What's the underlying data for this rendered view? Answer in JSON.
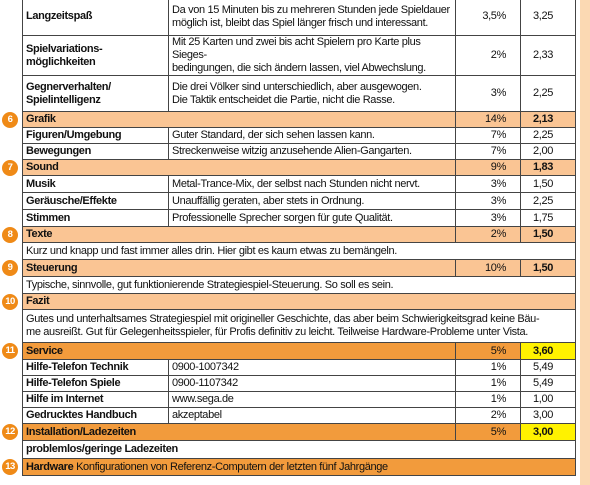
{
  "rows": [
    {
      "name": "Langzeitspaß",
      "description": "Da von 15 Minuten bis zu mehreren Stunden jede Spieldauer\nmöglich ist, bleibt das Spiel länger frisch und interessant.",
      "weight": "3,5%",
      "score": "3,25"
    },
    {
      "name": "Spielvariations-\nmöglichkeiten",
      "description": "Mit 25 Karten und zwei bis acht Spielern pro Karte plus Sieges-\nbedingungen, die sich ändern lassen, viel Abwechslung.",
      "weight": "2%",
      "score": "2,33"
    },
    {
      "name": "Gegnerverhalten/\nSpielintelligenz",
      "description": "Die drei Völker sind unterschiedlich, aber ausgewogen.\nDie Taktik entscheidet die Partie, nicht die Rasse.",
      "weight": "3%",
      "score": "2,25"
    },
    {
      "number": "6",
      "name": "Grafik",
      "weight": "14%",
      "score": "2,13"
    },
    {
      "name": "Figuren/Umgebung",
      "description": "Guter Standard, der sich sehen lassen kann.",
      "weight": "7%",
      "score": "2,25"
    },
    {
      "name": "Bewegungen",
      "description": "Streckenweise witzig anzusehende Alien-Gangarten.",
      "weight": "7%",
      "score": "2,00"
    },
    {
      "number": "7",
      "name": "Sound",
      "weight": "9%",
      "score": "1,83"
    },
    {
      "name": "Musik",
      "description": "Metal-Trance-Mix, der selbst nach Stunden nicht nervt.",
      "weight": "3%",
      "score": "1,50"
    },
    {
      "name": "Geräusche/Effekte",
      "description": "Unauffällig geraten, aber stets in Ordnung.",
      "weight": "3%",
      "score": "2,25"
    },
    {
      "name": "Stimmen",
      "description": "Professionelle Sprecher sorgen für gute Qualität.",
      "weight": "3%",
      "score": "1,75"
    },
    {
      "number": "8",
      "name": "Texte",
      "weight": "2%",
      "score": "1,50"
    },
    {
      "text": "Kurz und knapp und fast immer alles drin. Hier gibt es kaum etwas zu bemängeln."
    },
    {
      "number": "9",
      "name": "Steuerung",
      "weight": "10%",
      "score": "1,50"
    },
    {
      "text": "Typische, sinnvolle, gut funktionierende Strategiespiel-Steuerung. So soll es sein."
    },
    {
      "number": "10",
      "name": "Fazit"
    },
    {
      "text": "Gutes und unterhaltsames Strategiespiel mit origineller Geschichte, das aber beim Schwierigkeitsgrad keine Bäu-\nme ausreißt. Gut für Gelegenheitsspieler, für Profis definitiv zu leicht. Teilweise Hardware-Probleme unter Vista."
    },
    {
      "number": "11",
      "name": "Service",
      "weight": "5%",
      "score": "3,60"
    },
    {
      "name": "Hilfe-Telefon Technik",
      "description": "0900-1007342",
      "weight": "1%",
      "score": "5,49"
    },
    {
      "name": "Hilfe-Telefon Spiele",
      "description": "0900-1107342",
      "weight": "1%",
      "score": "5,49"
    },
    {
      "name": "Hilfe im Internet",
      "description": "www.sega.de",
      "weight": "1%",
      "score": "1,00"
    },
    {
      "name": "Gedrucktes Handbuch",
      "description": "akzeptabel",
      "weight": "2%",
      "score": "3,00"
    },
    {
      "number": "12",
      "name": "Installation/Ladezeiten",
      "weight": "5%",
      "score": "3,00"
    },
    {
      "text": "problemlos/geringe Ladezeiten"
    },
    {
      "number": "13",
      "name": "Hardware",
      "description": "Konfigurationen von Referenz-Computern der letzten fünf Jahrgänge"
    }
  ]
}
